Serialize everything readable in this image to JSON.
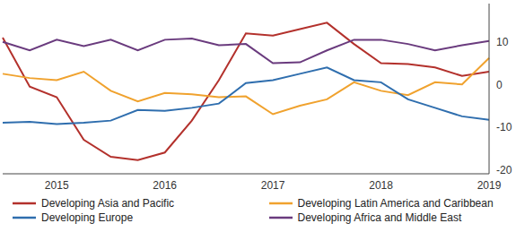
{
  "chart_data": {
    "type": "line",
    "categories": [
      null,
      null,
      "2015",
      null,
      null,
      null,
      "2016",
      null,
      null,
      null,
      "2017",
      null,
      null,
      null,
      "2018",
      null,
      null,
      null,
      "2019"
    ],
    "series": [
      {
        "name": "Developing Asia and Pacific",
        "color": "#b3312c",
        "values": [
          11,
          -0.5,
          -3,
          -13,
          -17,
          -17.8,
          -16,
          -8.5,
          1,
          12,
          11.5,
          13,
          14.5,
          9.5,
          5,
          4.8,
          4,
          2,
          3
        ]
      },
      {
        "name": "Developing Latin America and Caribbean",
        "color": "#f0a22e",
        "values": [
          2.5,
          1.5,
          1,
          3,
          -1.5,
          -4,
          -2,
          -2.3,
          -3,
          -2.8,
          -7,
          -5,
          -3.5,
          0.5,
          -1.5,
          -2.5,
          0.5,
          0,
          6.2
        ]
      },
      {
        "name": "Developing Europe",
        "color": "#2f6eae",
        "values": [
          -9,
          -8.8,
          -9.3,
          -9,
          -8.5,
          -6,
          -6.2,
          -5.5,
          -4.5,
          0.3,
          1,
          2.5,
          4,
          1,
          0.5,
          -3.5,
          -5.5,
          -7.5,
          -8.3
        ]
      },
      {
        "name": "Developing Africa and Middle East",
        "color": "#6a3b7e",
        "values": [
          10,
          8,
          10.5,
          9,
          10.5,
          8,
          10.5,
          10.8,
          9.2,
          9.5,
          5,
          5.2,
          8,
          10.5,
          10.5,
          9.5,
          8,
          9.2,
          10.2
        ]
      }
    ],
    "ylim": [
      -21,
      19
    ],
    "yticks": [
      -20,
      -10,
      0,
      10
    ],
    "grid": false,
    "legend": "bottom"
  }
}
